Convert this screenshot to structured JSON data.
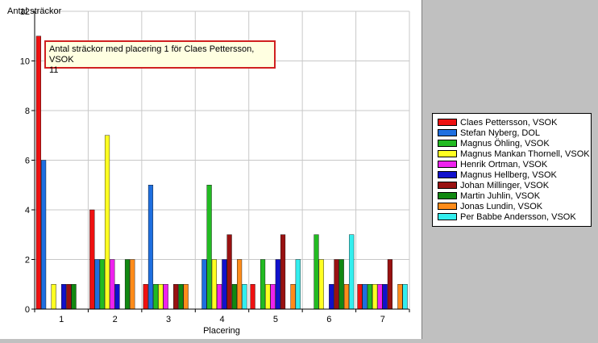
{
  "legend_title": "Antal sträckor",
  "tooltip": {
    "line1": "Antal sträckor med placering 1 för Claes Pettersson, VSOK",
    "line2": "11"
  },
  "chart_data": {
    "type": "bar",
    "title": "",
    "ylabel": "Antal sträckor",
    "xlabel": "Placering",
    "ylim": [
      0,
      12
    ],
    "yticks": [
      0,
      2,
      4,
      6,
      8,
      10,
      12
    ],
    "grid": true,
    "legend_position": "right",
    "categories": [
      "1",
      "2",
      "3",
      "4",
      "5",
      "6",
      "7"
    ],
    "series": [
      {
        "name": "Claes Pettersson, VSOK",
        "color": "#ee1111",
        "values": [
          11,
          4,
          1,
          0,
          1,
          0,
          1
        ]
      },
      {
        "name": "Stefan Nyberg, DOL",
        "color": "#1e6fe0",
        "values": [
          6,
          2,
          5,
          2,
          0,
          0,
          1
        ]
      },
      {
        "name": "Magnus Öhling, VSOK",
        "color": "#22bb22",
        "values": [
          0,
          2,
          1,
          5,
          2,
          3,
          1
        ]
      },
      {
        "name": "Magnus Mankan Thornell, VSOK",
        "color": "#ffff22",
        "values": [
          1,
          7,
          1,
          2,
          1,
          2,
          1
        ]
      },
      {
        "name": "Henrik Ortman, VSOK",
        "color": "#ee22ee",
        "values": [
          0,
          2,
          1,
          1,
          1,
          0,
          1
        ]
      },
      {
        "name": "Magnus Hellberg, VSOK",
        "color": "#1111cc",
        "values": [
          1,
          1,
          0,
          2,
          2,
          1,
          1
        ]
      },
      {
        "name": "Johan Millinger, VSOK",
        "color": "#991111",
        "values": [
          1,
          0,
          1,
          3,
          3,
          2,
          2
        ]
      },
      {
        "name": "Martin Juhlin, VSOK",
        "color": "#118811",
        "values": [
          1,
          2,
          1,
          1,
          0,
          2,
          0
        ]
      },
      {
        "name": "Jonas Lundin, VSOK",
        "color": "#ff8c1a",
        "values": [
          0,
          2,
          1,
          2,
          1,
          1,
          1
        ]
      },
      {
        "name": "Per Babbe Andersson, VSOK",
        "color": "#33eeee",
        "values": [
          0,
          0,
          0,
          1,
          2,
          3,
          1
        ]
      }
    ]
  }
}
